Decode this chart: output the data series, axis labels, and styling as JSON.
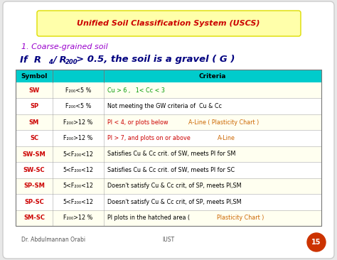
{
  "bg_color": "#e8e8e8",
  "slide_bg": "#ffffff",
  "title_text": "Unified Soil Classification System (USCS)",
  "title_bg": "#ffffaa",
  "title_border": "#dddd00",
  "title_color": "#cc0000",
  "subtitle": "1. Coarse-grained soil",
  "subtitle_color": "#9900cc",
  "formula_color": "#000080",
  "table_header_bg": "#00cccc",
  "table_header_color": "#000000",
  "table_rows": [
    {
      "symbol": "SW",
      "symbol_color": "#cc0000",
      "col2": "F₂₀₀<5 %",
      "col3_parts": [
        {
          "text": "Cu > 6 ,   1< Cc < 3",
          "color": "#009900"
        }
      ],
      "row_bg": "#fffff0"
    },
    {
      "symbol": "SP",
      "symbol_color": "#cc0000",
      "col2": "F₂₀₀<5 %",
      "col3_parts": [
        {
          "text": "Not meeting the GW criteria of  Cu & Cc",
          "color": "#000000"
        }
      ],
      "row_bg": "#ffffff"
    },
    {
      "symbol": "SM",
      "symbol_color": "#cc0000",
      "col2": "F₂₀₀>12 %",
      "col3_parts": [
        {
          "text": "PI < 4, or plots below ",
          "color": "#cc0000"
        },
        {
          "text": "A-Line ( Plasticity Chart )",
          "color": "#cc6600"
        }
      ],
      "row_bg": "#fffff0"
    },
    {
      "symbol": "SC",
      "symbol_color": "#cc0000",
      "col2": "F₂₀₀>12 %",
      "col3_parts": [
        {
          "text": "PI > 7, and plots on or above ",
          "color": "#cc0000"
        },
        {
          "text": "A-Line",
          "color": "#cc6600"
        }
      ],
      "row_bg": "#ffffff"
    },
    {
      "symbol": "SW-SM",
      "symbol_color": "#cc0000",
      "col2": "5<F₂₀₀<12",
      "col3_parts": [
        {
          "text": "Satisfies Cu & Cc crit. of SW, meets PI for SM",
          "color": "#000000"
        }
      ],
      "row_bg": "#fffff0"
    },
    {
      "symbol": "SW-SC",
      "symbol_color": "#cc0000",
      "col2": "5<F₂₀₀<12",
      "col3_parts": [
        {
          "text": "Satisfies Cu & Cc crit. of SW, meets PI for SC",
          "color": "#000000"
        }
      ],
      "row_bg": "#ffffff"
    },
    {
      "symbol": "SP-SM",
      "symbol_color": "#cc0000",
      "col2": "5<F₂₀₀<12",
      "col3_parts": [
        {
          "text": "Doesn't satisfy Cu & Cc crit, of SP, meets PI,SM",
          "color": "#000000"
        }
      ],
      "row_bg": "#fffff0"
    },
    {
      "symbol": "SP-SC",
      "symbol_color": "#cc0000",
      "col2": "5<F₂₀₀<12",
      "col3_parts": [
        {
          "text": "Doesn't satisfy Cu & Cc crit, of SP, meets PI,SM",
          "color": "#000000"
        }
      ],
      "row_bg": "#ffffff"
    },
    {
      "symbol": "SM-SC",
      "symbol_color": "#cc0000",
      "col2": "F₂₀₀>12 %",
      "col3_parts": [
        {
          "text": "PI plots in the hatched area ( ",
          "color": "#000000"
        },
        {
          "text": "Plasticity Chart )",
          "color": "#cc6600"
        }
      ],
      "row_bg": "#fffff0"
    }
  ],
  "footer_left": "Dr. Abdulmannan Orabi",
  "footer_center": "IUST",
  "footer_page": "15",
  "footer_color": "#555555"
}
